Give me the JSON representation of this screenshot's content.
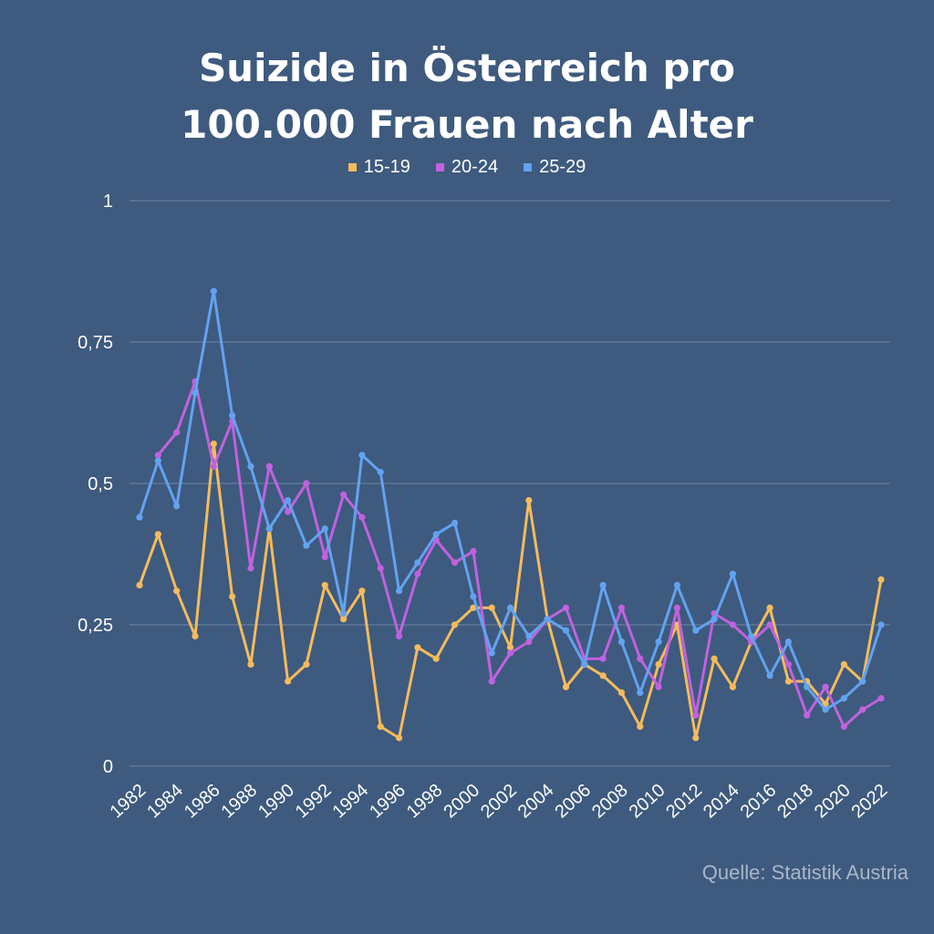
{
  "chart_data": {
    "type": "line",
    "title_lines": [
      "Suizide in Österreich pro",
      "100.000 Frauen nach Alter"
    ],
    "source": "Quelle: Statistik Austria",
    "ylim": [
      0,
      1
    ],
    "y_ticks": [
      0,
      0.25,
      0.5,
      0.75,
      1
    ],
    "y_tick_labels": [
      "0",
      "0,25",
      "0,5",
      "0,75",
      "1"
    ],
    "x_tick_labels": [
      "1982",
      "1984",
      "1986",
      "1988",
      "1990",
      "1992",
      "1994",
      "1996",
      "1998",
      "2000",
      "2002",
      "2004",
      "2006",
      "2008",
      "2010",
      "2012",
      "2014",
      "2016",
      "2018",
      "2020",
      "2022"
    ],
    "x_tick_values": [
      1982,
      1984,
      1986,
      1988,
      1990,
      1992,
      1994,
      1996,
      1998,
      2000,
      2002,
      2004,
      2006,
      2008,
      2010,
      2012,
      2014,
      2016,
      2018,
      2020,
      2022
    ],
    "x": [
      1982,
      1983,
      1984,
      1985,
      1986,
      1987,
      1988,
      1989,
      1990,
      1991,
      1992,
      1993,
      1994,
      1995,
      1996,
      1997,
      1998,
      1999,
      2000,
      2001,
      2002,
      2003,
      2004,
      2005,
      2006,
      2007,
      2008,
      2009,
      2010,
      2011,
      2012,
      2013,
      2014,
      2015,
      2016,
      2017,
      2018,
      2019,
      2020,
      2021,
      2022
    ],
    "grid": true,
    "legend_position": "top-center",
    "series": [
      {
        "name": "15-19",
        "color": "#f5bb5c",
        "values": [
          0.32,
          0.41,
          0.31,
          0.23,
          0.57,
          0.3,
          0.18,
          0.42,
          0.15,
          0.18,
          0.32,
          0.26,
          0.31,
          0.07,
          0.05,
          0.21,
          0.19,
          0.25,
          0.28,
          0.28,
          0.21,
          0.47,
          0.26,
          0.14,
          0.18,
          0.16,
          0.13,
          0.07,
          0.18,
          0.25,
          0.05,
          0.19,
          0.14,
          0.22,
          0.28,
          0.15,
          0.15,
          0.11,
          0.18,
          0.15,
          0.33
        ]
      },
      {
        "name": "20-24",
        "color": "#c062e0",
        "values": [
          null,
          0.55,
          0.59,
          0.68,
          0.53,
          0.61,
          0.35,
          0.53,
          0.45,
          0.5,
          0.37,
          0.48,
          0.44,
          0.35,
          0.23,
          0.34,
          0.4,
          0.36,
          0.38,
          0.15,
          0.2,
          0.22,
          0.26,
          0.28,
          0.19,
          0.19,
          0.28,
          0.19,
          0.14,
          0.28,
          0.09,
          0.27,
          0.25,
          0.22,
          0.25,
          0.18,
          0.09,
          0.14,
          0.07,
          0.1,
          0.12
        ]
      },
      {
        "name": "25-29",
        "color": "#62a3f0",
        "values": [
          0.44,
          0.54,
          0.46,
          0.66,
          0.84,
          0.62,
          0.53,
          0.42,
          0.47,
          0.39,
          0.42,
          0.27,
          0.55,
          0.52,
          0.31,
          0.36,
          0.41,
          0.43,
          0.3,
          0.2,
          0.28,
          0.23,
          0.26,
          0.24,
          0.18,
          0.32,
          0.22,
          0.13,
          0.22,
          0.32,
          0.24,
          0.26,
          0.34,
          0.23,
          0.16,
          0.22,
          0.14,
          0.1,
          0.12,
          0.15,
          0.25
        ]
      }
    ]
  }
}
